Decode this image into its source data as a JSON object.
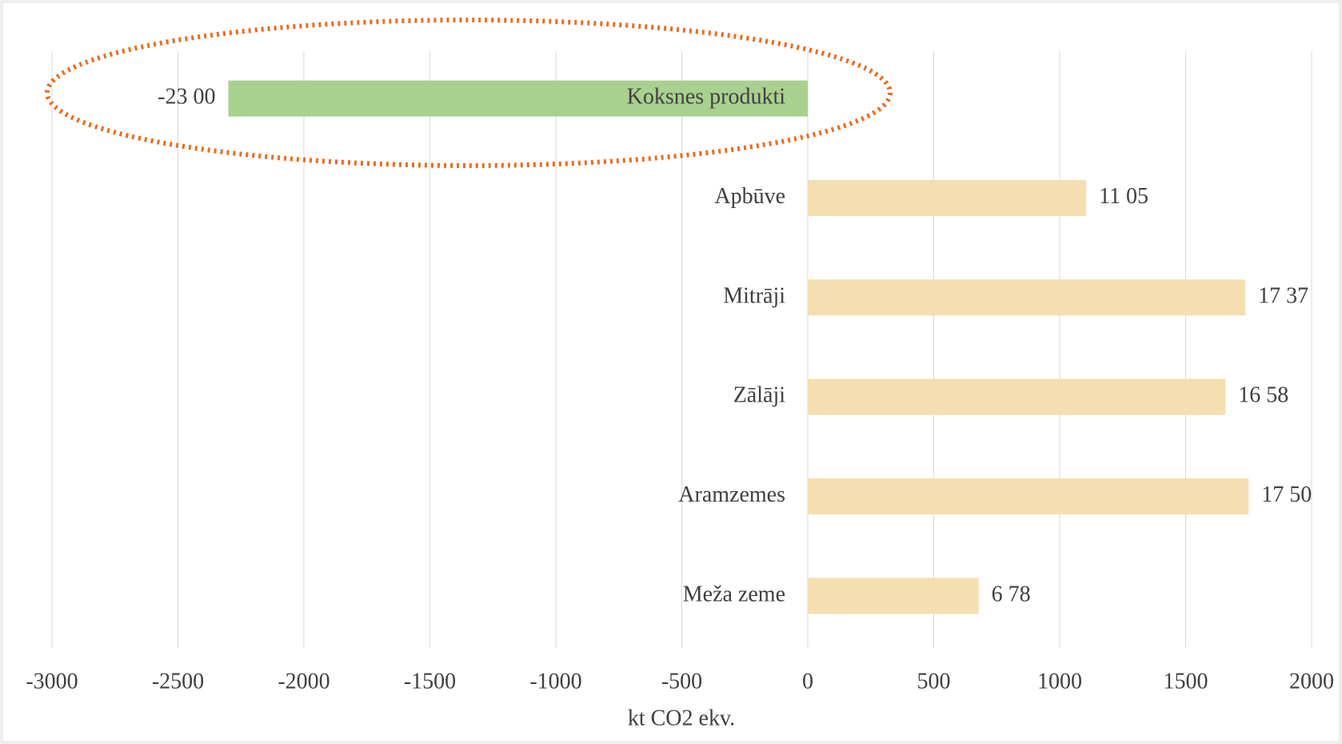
{
  "chart_data": {
    "type": "hbar",
    "x_label": "kt CO2 ekv.",
    "categories": [
      "Koksnes produkti",
      "Apbūve",
      "Mitrāji",
      "Zālāji",
      "Aramzemes",
      "Meža zeme"
    ],
    "values": [
      -2300,
      1105,
      1737,
      1658,
      1750,
      678
    ],
    "value_labels": [
      "-23 00",
      "11 05",
      "17 37",
      "16 58",
      "17 50",
      "6 78"
    ],
    "colors": [
      "#a9d18e",
      "#f5deb0",
      "#f5deb0",
      "#f5deb0",
      "#f5deb0",
      "#f5deb0"
    ],
    "xlim": [
      -3000,
      2000
    ],
    "xticks": [
      -3000,
      -2500,
      -2000,
      -1500,
      -1000,
      -500,
      0,
      500,
      1000,
      1500,
      2000
    ],
    "grid": true
  }
}
